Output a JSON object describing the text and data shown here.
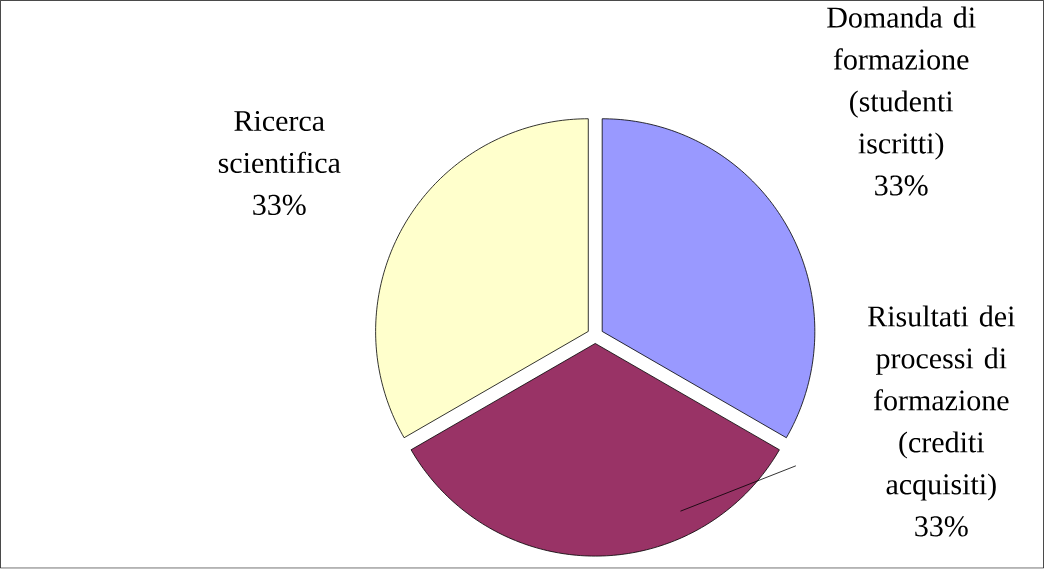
{
  "chart_data": {
    "type": "pie",
    "categories": [
      "Domanda di formazione (studenti iscritti)",
      "Risultati dei processi di formazione (crediti acquisiti)",
      "Ricerca scientifica"
    ],
    "values": [
      33,
      33,
      33
    ],
    "value_labels": [
      "33%",
      "33%",
      "33%"
    ],
    "colors": [
      "#9999ff",
      "#993366",
      "#ffffcc"
    ]
  }
}
